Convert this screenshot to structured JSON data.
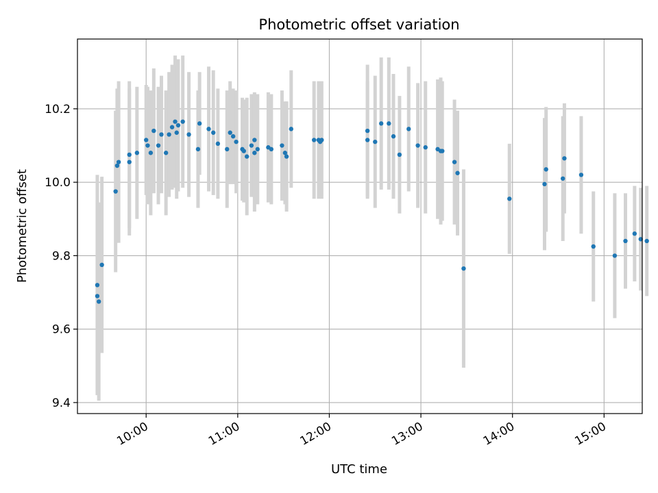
{
  "chart_data": {
    "type": "scatter",
    "title": "Photometric offset variation",
    "xlabel": "UTC time",
    "ylabel": "Photometric offset",
    "x_unit": "UTC time (HH:MM)",
    "xlim": [
      "09:15",
      "15:25"
    ],
    "ylim": [
      9.37,
      10.39
    ],
    "x_ticks": [
      "10:00",
      "11:00",
      "12:00",
      "13:00",
      "14:00",
      "15:00"
    ],
    "y_ticks": [
      "9.4",
      "9.6",
      "9.8",
      "10.0",
      "10.2"
    ],
    "grid": true,
    "colors": {
      "marker": "#1f77b4",
      "errorbar": "#d3d3d3",
      "grid": "#b0b0b0",
      "axes": "#000000"
    },
    "series": [
      {
        "x": [
          "09:28",
          "09:28",
          "09:29",
          "09:31",
          "09:40",
          "09:41",
          "09:42",
          "09:49",
          "09:49",
          "09:54",
          "10:00",
          "10:01",
          "10:03",
          "10:05",
          "10:08",
          "10:10",
          "10:13",
          "10:15",
          "10:17",
          "10:19",
          "10:20",
          "10:21",
          "10:24",
          "10:28",
          "10:34",
          "10:35",
          "10:41",
          "10:44",
          "10:47",
          "10:53",
          "10:55",
          "10:57",
          "10:59",
          "11:03",
          "11:04",
          "11:06",
          "11:09",
          "11:11",
          "11:11",
          "11:13",
          "11:20",
          "11:22",
          "11:29",
          "11:31",
          "11:32",
          "11:35",
          "11:50",
          "11:53",
          "11:54",
          "11:55",
          "12:25",
          "12:25",
          "12:30",
          "12:34",
          "12:39",
          "12:42",
          "12:46",
          "12:52",
          "12:58",
          "13:03",
          "13:11",
          "13:13",
          "13:14",
          "13:22",
          "13:24",
          "13:28",
          "13:58",
          "14:21",
          "14:22",
          "14:33",
          "14:34",
          "14:45",
          "14:53",
          "15:07",
          "15:14",
          "15:20",
          "15:24",
          "15:28"
        ],
        "y": [
          9.72,
          9.69,
          9.675,
          9.775,
          9.975,
          10.045,
          10.055,
          10.075,
          10.055,
          10.08,
          10.115,
          10.1,
          10.08,
          10.14,
          10.1,
          10.13,
          10.08,
          10.13,
          10.15,
          10.165,
          10.135,
          10.155,
          10.165,
          10.13,
          10.09,
          10.16,
          10.145,
          10.135,
          10.105,
          10.09,
          10.135,
          10.125,
          10.11,
          10.09,
          10.085,
          10.07,
          10.1,
          10.115,
          10.08,
          10.09,
          10.095,
          10.09,
          10.1,
          10.08,
          10.07,
          10.145,
          10.115,
          10.115,
          10.11,
          10.115,
          10.14,
          10.115,
          10.11,
          10.16,
          10.16,
          10.125,
          10.075,
          10.145,
          10.1,
          10.095,
          10.09,
          10.085,
          10.085,
          10.055,
          10.025,
          9.765,
          9.955,
          9.995,
          10.035,
          10.01,
          10.065,
          10.02,
          9.825,
          9.8,
          9.84,
          9.86,
          9.845,
          9.84
        ],
        "err": [
          0.3,
          0.26,
          0.27,
          0.24,
          0.22,
          0.21,
          0.22,
          0.2,
          0.2,
          0.18,
          0.15,
          0.16,
          0.17,
          0.17,
          0.16,
          0.16,
          0.17,
          0.17,
          0.17,
          0.18,
          0.18,
          0.18,
          0.18,
          0.17,
          0.16,
          0.14,
          0.17,
          0.17,
          0.15,
          0.16,
          0.14,
          0.13,
          0.14,
          0.14,
          0.14,
          0.16,
          0.14,
          0.13,
          0.16,
          0.15,
          0.15,
          0.15,
          0.15,
          0.14,
          0.15,
          0.16,
          0.16,
          0.16,
          0.15,
          0.16,
          0.18,
          0.16,
          0.18,
          0.18,
          0.18,
          0.17,
          0.16,
          0.17,
          0.17,
          0.18,
          0.19,
          0.2,
          0.19,
          0.17,
          0.17,
          0.27,
          0.15,
          0.18,
          0.17,
          0.17,
          0.15,
          0.16,
          0.15,
          0.17,
          0.13,
          0.13,
          0.14,
          0.15
        ]
      }
    ]
  }
}
